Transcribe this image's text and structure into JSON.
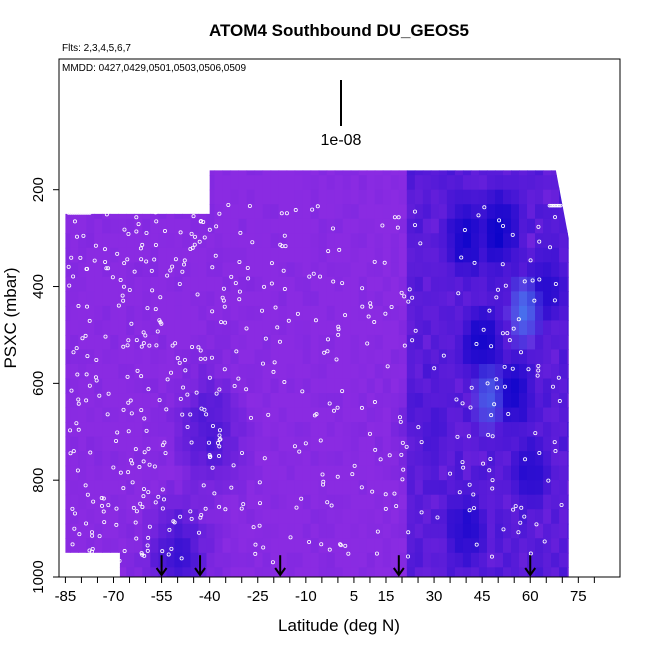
{
  "chart_data": {
    "type": "heatmap",
    "title": "ATOM4 Southbound DU_GEOS5",
    "subtitle_flights": "Flts: 2,3,4,5,6,7",
    "subtitle_dates": "MMDD: 0427,0429,0501,0503,0506,0509",
    "xlabel": "Latitude (deg N)",
    "ylabel": "PSXC (mbar)",
    "xlim": [
      -87,
      88
    ],
    "ylim": [
      1000,
      -70
    ],
    "x_tick_labels": [
      "-85",
      "-70",
      "-55",
      "-40",
      "-25",
      "-10",
      "5",
      "15",
      "30",
      "45",
      "60",
      "75"
    ],
    "x_tick_values": [
      -85,
      -70,
      -55,
      -40,
      -25,
      -10,
      5,
      15,
      30,
      45,
      60,
      75
    ],
    "y_tick_labels": [
      "200",
      "400",
      "600",
      "800",
      "1000"
    ],
    "y_tick_values": [
      200,
      400,
      600,
      800,
      1000
    ],
    "scale_bar_label": "1e-08",
    "arrow_latitudes": [
      -55,
      -43,
      -18,
      19,
      60
    ],
    "curtain_extent": {
      "lat_min": -85,
      "lat_max": 72,
      "p_top_high_lat": 250,
      "p_top_mid_lat": 160,
      "p_bottom_south": 950,
      "p_bottom_north": 1000
    },
    "dust_hotspots": [
      {
        "lat": 40,
        "p": 300,
        "level": 0.85
      },
      {
        "lat": 50,
        "p": 280,
        "level": 0.9
      },
      {
        "lat": 65,
        "p": 400,
        "level": 0.7
      },
      {
        "lat": 45,
        "p": 520,
        "level": 0.85
      },
      {
        "lat": 55,
        "p": 620,
        "level": 0.8
      },
      {
        "lat": 60,
        "p": 780,
        "level": 0.7
      },
      {
        "lat": 40,
        "p": 900,
        "level": 0.75
      },
      {
        "lat": 30,
        "p": 700,
        "level": 0.5
      },
      {
        "lat": -40,
        "p": 700,
        "level": 0.45
      },
      {
        "lat": -50,
        "p": 960,
        "level": 0.55
      }
    ],
    "dilute_hotspots": [
      {
        "lat": 58,
        "p": 450,
        "level": 0.9
      },
      {
        "lat": 47,
        "p": 630,
        "level": 0.7
      }
    ],
    "colors": {
      "background_dust": "#8a2be2",
      "high_dust": "#0000c8",
      "very_high_dust": "#00008b",
      "dilute_blue": "#4169e1",
      "markers": "#ffffff"
    }
  }
}
